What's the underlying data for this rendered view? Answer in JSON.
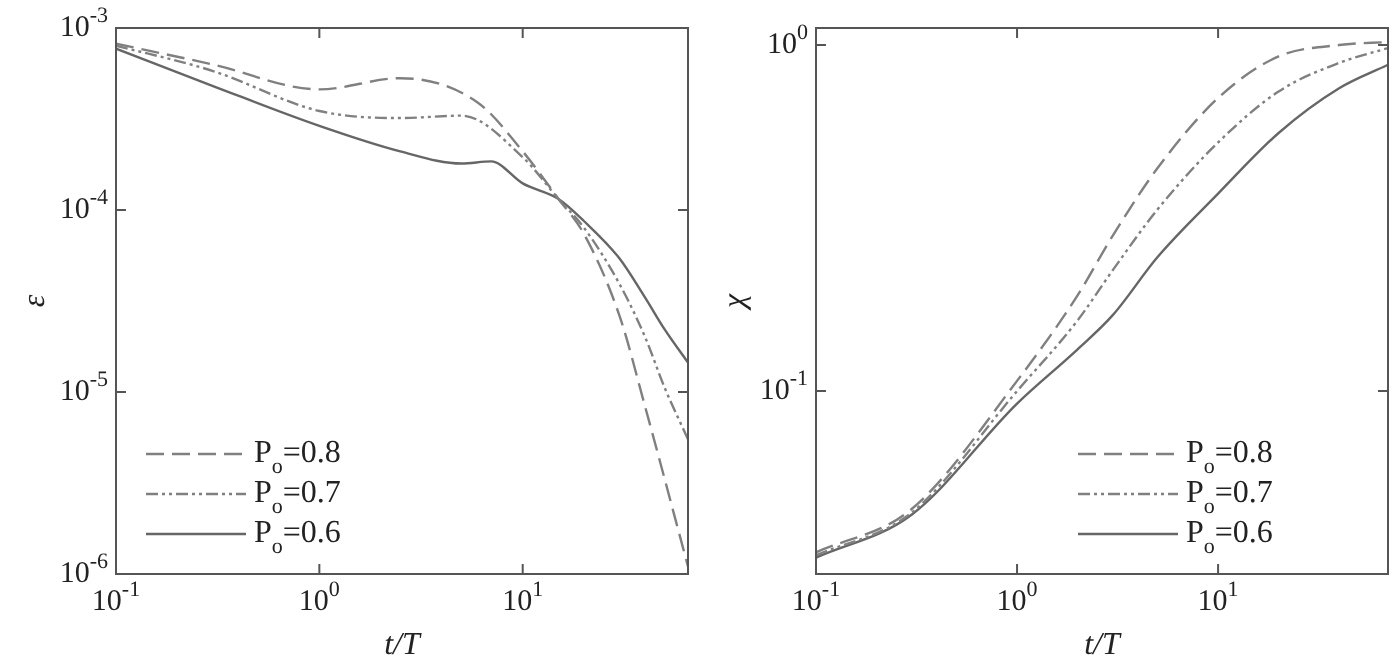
{
  "chart_data": [
    {
      "type": "line",
      "xlabel": "t/T",
      "ylabel": "ε",
      "log": "xy",
      "grid": false,
      "legend": "bottom left",
      "xlim": [
        0.1,
        65
      ],
      "xticks": [
        {
          "value": 0.1,
          "label": "10$^{-1}$"
        },
        {
          "value": 1,
          "label": "10$^{0}$"
        },
        {
          "value": 10,
          "label": "10$^{1}$"
        }
      ],
      "ylim": [
        1e-06,
        0.001
      ],
      "yticks": [
        {
          "value": 1e-06,
          "label": "10$^{-6}$"
        },
        {
          "value": 1e-05,
          "label": "10$^{-5}$"
        },
        {
          "value": 0.0001,
          "label": "10$^{-4}$"
        },
        {
          "value": 0.001,
          "label": "10$^{-3}$"
        }
      ],
      "series": [
        {
          "name": "P$_{o}$=0.8",
          "color": "#808080",
          "line_style": "dashed",
          "x": [
            0.1,
            0.3,
            1,
            2.5,
            6,
            10,
            15,
            20,
            30,
            40,
            65
          ],
          "values": [
            0.00082,
            0.00063,
            0.00046,
            0.00053,
            0.00039,
            0.00021,
            0.000115,
            7.4e-05,
            2.6e-05,
            8.3e-06,
            1.1e-06
          ]
        },
        {
          "name": "P$_{o}$=0.7",
          "color": "#808080",
          "line_style": "dotted",
          "x": [
            0.1,
            0.3,
            1,
            2.5,
            5,
            10,
            15,
            20,
            30,
            40,
            50,
            65
          ],
          "values": [
            0.0008,
            0.00058,
            0.00035,
            0.00032,
            0.00033,
            0.000195,
            0.000115,
            8e-05,
            3.9e-05,
            2e-05,
            1.05e-05,
            5.5e-06
          ]
        },
        {
          "name": "P$_{o}$=0.6",
          "color": "#666666",
          "line_style": "solid",
          "x": [
            0.1,
            0.3,
            1,
            2.5,
            5,
            7,
            10,
            15,
            20,
            30,
            40,
            50,
            65
          ],
          "values": [
            0.00077,
            0.00048,
            0.00029,
            0.00021,
            0.00018,
            0.000185,
            0.00014,
            0.000115,
            8.7e-05,
            5.4e-05,
            3.3e-05,
            2.2e-05,
            1.45e-05
          ]
        }
      ]
    },
    {
      "type": "line",
      "xlabel": "t/T",
      "ylabel": "χ",
      "log": "xy",
      "grid": false,
      "legend": "bottom right",
      "xlim": [
        0.1,
        70
      ],
      "xticks": [
        {
          "value": 0.1,
          "label": "10$^{-1}$"
        },
        {
          "value": 1,
          "label": "10$^{0}$"
        },
        {
          "value": 10,
          "label": "10$^{1}$"
        }
      ],
      "ylim": [
        0.0296,
        1.12
      ],
      "yticks": [
        {
          "value": 0.1,
          "label": "10$^{-1}$"
        },
        {
          "value": 1,
          "label": "10$^{0}$"
        }
      ],
      "series": [
        {
          "name": "P$_{o}$=0.8",
          "color": "#808080",
          "line_style": "dashed",
          "x": [
            0.1,
            0.3,
            1,
            2,
            3,
            5,
            10,
            20,
            40,
            70
          ],
          "values": [
            0.0342,
            0.0457,
            0.107,
            0.189,
            0.282,
            0.441,
            0.703,
            0.927,
            1.0,
            1.02
          ]
        },
        {
          "name": "P$_{o}$=0.7",
          "color": "#808080",
          "line_style": "dotted",
          "x": [
            0.1,
            0.3,
            1,
            2,
            3,
            5,
            10,
            20,
            40,
            70
          ],
          "values": [
            0.0335,
            0.0446,
            0.1,
            0.16,
            0.224,
            0.335,
            0.523,
            0.734,
            0.888,
            0.98
          ]
        },
        {
          "name": "P$_{o}$=0.6",
          "color": "#666666",
          "line_style": "solid",
          "x": [
            0.1,
            0.3,
            1,
            2,
            3,
            5,
            10,
            20,
            40,
            70
          ],
          "values": [
            0.033,
            0.044,
            0.092,
            0.132,
            0.166,
            0.244,
            0.372,
            0.557,
            0.75,
            0.877
          ]
        }
      ]
    }
  ]
}
